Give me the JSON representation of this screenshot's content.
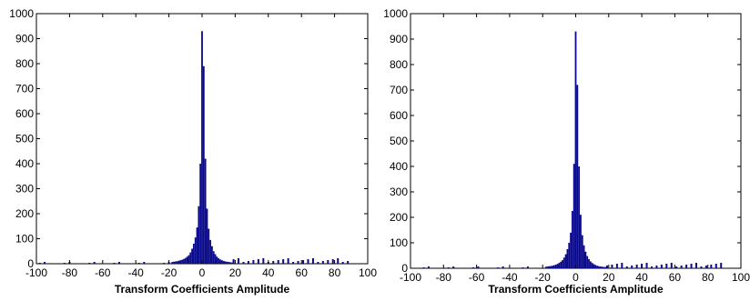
{
  "chart_data": [
    {
      "type": "bar",
      "title": "",
      "xlabel": "Transform Coefficients Amplitude",
      "ylabel": "",
      "xlim": [
        -100,
        100
      ],
      "ylim": [
        0,
        1000
      ],
      "xticks": [
        "-100",
        "-80",
        "-60",
        "-40",
        "-20",
        "0",
        "20",
        "40",
        "60",
        "80",
        "100"
      ],
      "yticks": [
        "0",
        "100",
        "200",
        "300",
        "400",
        "500",
        "600",
        "700",
        "800",
        "900",
        "1000"
      ],
      "bar_color": "#0a0a8c",
      "grid": false,
      "bin_width": 1,
      "x": [
        -18,
        -17,
        -16,
        -15,
        -14,
        -13,
        -12,
        -11,
        -10,
        -9,
        -8,
        -7,
        -6,
        -5,
        -4,
        -3,
        -2,
        -1,
        0,
        1,
        2,
        3,
        4,
        5,
        6,
        7,
        8,
        9,
        10,
        11,
        12,
        13,
        14,
        15,
        16,
        17,
        18
      ],
      "values": [
        7,
        8,
        9,
        10,
        12,
        14,
        16,
        19,
        23,
        28,
        34,
        45,
        60,
        80,
        105,
        145,
        230,
        400,
        930,
        790,
        420,
        220,
        140,
        95,
        70,
        50,
        38,
        28,
        22,
        17,
        14,
        11,
        9,
        8,
        7,
        6,
        5
      ]
    },
    {
      "type": "bar",
      "title": "",
      "xlabel": "Transform Coefficients Amplitude",
      "ylabel": "",
      "xlim": [
        -100,
        100
      ],
      "ylim": [
        0,
        1000
      ],
      "xticks": [
        "-100",
        "-80",
        "-60",
        "-40",
        "-20",
        "0",
        "20",
        "40",
        "60",
        "80",
        "100"
      ],
      "yticks": [
        "0",
        "100",
        "200",
        "300",
        "400",
        "500",
        "600",
        "700",
        "800",
        "900",
        "1000"
      ],
      "bar_color": "#0a0a8c",
      "grid": false,
      "bin_width": 1,
      "x": [
        -18,
        -17,
        -16,
        -15,
        -14,
        -13,
        -12,
        -11,
        -10,
        -9,
        -8,
        -7,
        -6,
        -5,
        -4,
        -3,
        -2,
        -1,
        0,
        1,
        2,
        3,
        4,
        5,
        6,
        7,
        8,
        9,
        10,
        11,
        12,
        13,
        14,
        15,
        16,
        17,
        18
      ],
      "values": [
        6,
        7,
        8,
        9,
        10,
        12,
        14,
        17,
        21,
        26,
        32,
        42,
        55,
        75,
        100,
        140,
        225,
        410,
        930,
        720,
        400,
        210,
        130,
        90,
        65,
        48,
        36,
        27,
        21,
        16,
        13,
        10,
        8,
        7,
        6,
        5,
        5
      ]
    }
  ]
}
